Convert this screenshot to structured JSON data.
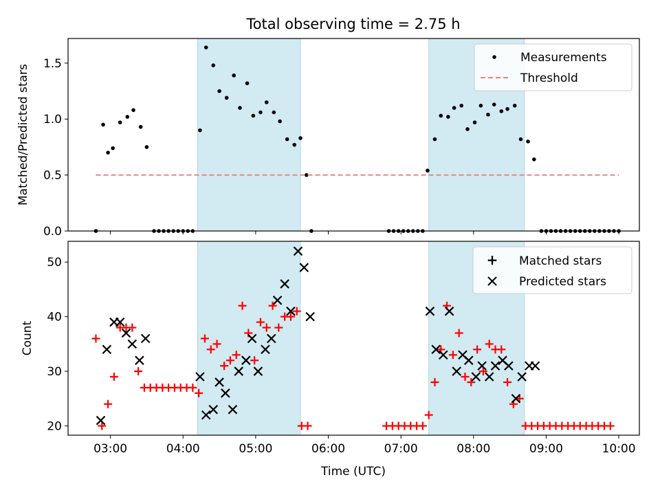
{
  "title": "Total observing time = 2.75 h",
  "colors": {
    "band": "#add8e6",
    "threshold": "#f08080",
    "matched": "#ff0000",
    "predicted": "#000000",
    "measure": "#000000"
  },
  "chart_data": [
    {
      "type": "scatter",
      "title": "Total observing time = 2.75 h",
      "xlabel": "",
      "ylabel": "Matched/Predicted stars",
      "xlim": [
        "02:25",
        "10:17"
      ],
      "ylim": [
        0,
        1.72
      ],
      "yticks": [
        "0.0",
        "0.5",
        "1.0",
        "1.5"
      ],
      "xticks": [
        "03:00",
        "04:00",
        "05:00",
        "06:00",
        "07:00",
        "08:00",
        "09:00",
        "10:00"
      ],
      "shaded_ranges": [
        [
          "04:12",
          "05:37"
        ],
        [
          "07:23",
          "08:42"
        ]
      ],
      "legend": {
        "location": "upper right",
        "entries": [
          "Measurements",
          "Threshold"
        ]
      },
      "series": [
        {
          "name": "Measurements",
          "marker": "dot",
          "points": [
            [
              "02:48",
              0
            ],
            [
              "02:54",
              0.95
            ],
            [
              "02:58",
              0.7
            ],
            [
              "03:02",
              0.74
            ],
            [
              "03:08",
              0.97
            ],
            [
              "03:14",
              1.02
            ],
            [
              "03:19",
              1.08
            ],
            [
              "03:25",
              0.93
            ],
            [
              "03:30",
              0.75
            ],
            [
              "03:36",
              0
            ],
            [
              "03:40",
              0
            ],
            [
              "03:44",
              0
            ],
            [
              "03:48",
              0
            ],
            [
              "03:52",
              0
            ],
            [
              "03:56",
              0
            ],
            [
              "04:00",
              0
            ],
            [
              "04:04",
              0
            ],
            [
              "04:08",
              0
            ],
            [
              "04:14",
              0.9
            ],
            [
              "04:19",
              1.64
            ],
            [
              "04:25",
              1.48
            ],
            [
              "04:30",
              1.25
            ],
            [
              "04:36",
              1.19
            ],
            [
              "04:42",
              1.39
            ],
            [
              "04:47",
              1.1
            ],
            [
              "04:53",
              1.32
            ],
            [
              "04:58",
              1.03
            ],
            [
              "05:04",
              1.06
            ],
            [
              "05:09",
              1.15
            ],
            [
              "05:15",
              1.06
            ],
            [
              "05:20",
              0.98
            ],
            [
              "05:26",
              0.82
            ],
            [
              "05:32",
              0.77
            ],
            [
              "05:37",
              0.83
            ],
            [
              "05:42",
              0.5
            ],
            [
              "05:46",
              0
            ],
            [
              "06:50",
              0
            ],
            [
              "06:54",
              0
            ],
            [
              "06:58",
              0
            ],
            [
              "07:02",
              0
            ],
            [
              "07:06",
              0
            ],
            [
              "07:10",
              0
            ],
            [
              "07:14",
              0
            ],
            [
              "07:18",
              0
            ],
            [
              "07:22",
              0.54
            ],
            [
              "07:28",
              0.82
            ],
            [
              "07:33",
              1.03
            ],
            [
              "07:39",
              1.02
            ],
            [
              "07:44",
              1.1
            ],
            [
              "07:50",
              1.12
            ],
            [
              "07:55",
              0.91
            ],
            [
              "08:01",
              0.97
            ],
            [
              "08:06",
              1.12
            ],
            [
              "08:12",
              1.04
            ],
            [
              "08:17",
              1.13
            ],
            [
              "08:23",
              1.07
            ],
            [
              "08:28",
              1.09
            ],
            [
              "08:34",
              1.12
            ],
            [
              "08:39",
              0.82
            ],
            [
              "08:45",
              0.8
            ],
            [
              "08:50",
              0.64
            ],
            [
              "08:56",
              0
            ],
            [
              "09:00",
              0
            ],
            [
              "09:04",
              0
            ],
            [
              "09:08",
              0
            ],
            [
              "09:12",
              0
            ],
            [
              "09:16",
              0
            ],
            [
              "09:20",
              0
            ],
            [
              "09:24",
              0
            ],
            [
              "09:28",
              0
            ],
            [
              "09:32",
              0
            ],
            [
              "09:36",
              0
            ],
            [
              "09:40",
              0
            ],
            [
              "09:44",
              0
            ],
            [
              "09:48",
              0
            ],
            [
              "09:52",
              0
            ],
            [
              "09:56",
              0
            ],
            [
              "10:00",
              0
            ]
          ]
        },
        {
          "name": "Threshold",
          "line": "dashed",
          "x": [
            "02:48",
            "10:00"
          ],
          "y": 0.5
        }
      ]
    },
    {
      "type": "scatter",
      "xlabel": "Time (UTC)",
      "ylabel": "Count",
      "xlim": [
        "02:25",
        "10:17"
      ],
      "ylim": [
        18.3,
        53.8
      ],
      "yticks": [
        "20",
        "30",
        "40",
        "50"
      ],
      "xticks": [
        "03:00",
        "04:00",
        "05:00",
        "06:00",
        "07:00",
        "08:00",
        "09:00",
        "10:00"
      ],
      "shaded_ranges": [
        [
          "04:12",
          "05:37"
        ],
        [
          "07:23",
          "08:42"
        ]
      ],
      "legend": {
        "location": "upper right",
        "entries": [
          "Matched stars",
          "Predicted stars"
        ]
      },
      "series": [
        {
          "name": "Matched stars",
          "marker": "plus",
          "points": [
            [
              "02:48",
              36
            ],
            [
              "02:53",
              20
            ],
            [
              "02:58",
              24
            ],
            [
              "03:03",
              29
            ],
            [
              "03:08",
              38
            ],
            [
              "03:13",
              38
            ],
            [
              "03:18",
              38
            ],
            [
              "03:23",
              30
            ],
            [
              "03:28",
              27
            ],
            [
              "03:33",
              27
            ],
            [
              "03:38",
              27
            ],
            [
              "03:43",
              27
            ],
            [
              "03:48",
              27
            ],
            [
              "03:53",
              27
            ],
            [
              "03:58",
              27
            ],
            [
              "04:03",
              27
            ],
            [
              "04:08",
              27
            ],
            [
              "04:13",
              26
            ],
            [
              "04:18",
              36
            ],
            [
              "04:23",
              34
            ],
            [
              "04:28",
              35
            ],
            [
              "04:34",
              31
            ],
            [
              "04:39",
              32
            ],
            [
              "04:44",
              33
            ],
            [
              "04:49",
              42
            ],
            [
              "04:54",
              37
            ],
            [
              "04:59",
              32
            ],
            [
              "05:04",
              39
            ],
            [
              "05:09",
              38
            ],
            [
              "05:14",
              42
            ],
            [
              "05:19",
              38
            ],
            [
              "05:24",
              40
            ],
            [
              "05:29",
              40
            ],
            [
              "05:34",
              41
            ],
            [
              "05:38",
              20
            ],
            [
              "05:43",
              20
            ],
            [
              "06:48",
              20
            ],
            [
              "06:53",
              20
            ],
            [
              "06:58",
              20
            ],
            [
              "07:03",
              20
            ],
            [
              "07:08",
              20
            ],
            [
              "07:13",
              20
            ],
            [
              "07:18",
              20
            ],
            [
              "07:23",
              22
            ],
            [
              "07:28",
              28
            ],
            [
              "07:33",
              34
            ],
            [
              "07:38",
              42
            ],
            [
              "07:43",
              33
            ],
            [
              "07:48",
              37
            ],
            [
              "07:53",
              29
            ],
            [
              "07:58",
              28
            ],
            [
              "08:03",
              34
            ],
            [
              "08:08",
              30
            ],
            [
              "08:13",
              35
            ],
            [
              "08:18",
              34
            ],
            [
              "08:23",
              34
            ],
            [
              "08:28",
              28
            ],
            [
              "08:33",
              24
            ],
            [
              "08:38",
              25
            ],
            [
              "08:43",
              20
            ],
            [
              "08:48",
              20
            ],
            [
              "08:53",
              20
            ],
            [
              "08:58",
              20
            ],
            [
              "09:03",
              20
            ],
            [
              "09:08",
              20
            ],
            [
              "09:13",
              20
            ],
            [
              "09:18",
              20
            ],
            [
              "09:23",
              20
            ],
            [
              "09:28",
              20
            ],
            [
              "09:33",
              20
            ],
            [
              "09:38",
              20
            ],
            [
              "09:43",
              20
            ],
            [
              "09:48",
              20
            ],
            [
              "09:53",
              20
            ]
          ]
        },
        {
          "name": "Predicted stars",
          "marker": "x",
          "points": [
            [
              "02:52",
              21
            ],
            [
              "02:57",
              34
            ],
            [
              "03:03",
              39
            ],
            [
              "03:08",
              39
            ],
            [
              "03:13",
              37
            ],
            [
              "03:18",
              35
            ],
            [
              "03:24",
              32
            ],
            [
              "03:29",
              36
            ],
            [
              "04:14",
              29
            ],
            [
              "04:19",
              22
            ],
            [
              "04:25",
              23
            ],
            [
              "04:30",
              28
            ],
            [
              "04:35",
              26
            ],
            [
              "04:41",
              23
            ],
            [
              "04:46",
              30
            ],
            [
              "04:52",
              32
            ],
            [
              "04:57",
              36
            ],
            [
              "05:02",
              30
            ],
            [
              "05:08",
              34
            ],
            [
              "05:13",
              36
            ],
            [
              "05:18",
              43
            ],
            [
              "05:24",
              46
            ],
            [
              "05:29",
              41
            ],
            [
              "05:35",
              52
            ],
            [
              "05:40",
              49
            ],
            [
              "05:45",
              40
            ],
            [
              "07:24",
              41
            ],
            [
              "07:29",
              34
            ],
            [
              "07:35",
              33
            ],
            [
              "07:40",
              41
            ],
            [
              "07:46",
              30
            ],
            [
              "07:51",
              33
            ],
            [
              "07:56",
              32
            ],
            [
              "08:02",
              29
            ],
            [
              "08:07",
              31
            ],
            [
              "08:13",
              29
            ],
            [
              "08:18",
              31
            ],
            [
              "08:24",
              32
            ],
            [
              "08:29",
              31
            ],
            [
              "08:35",
              25
            ],
            [
              "08:40",
              29
            ],
            [
              "08:46",
              31
            ],
            [
              "08:51",
              31
            ]
          ]
        }
      ]
    }
  ]
}
